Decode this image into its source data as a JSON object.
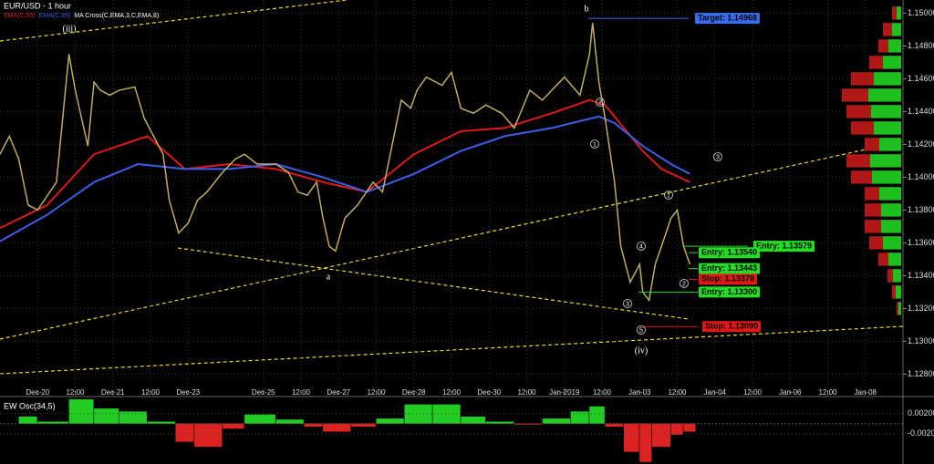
{
  "chart_data": [
    {
      "type": "line",
      "title": "EUR/USD - 1 hour",
      "xlim": [
        -12,
        276
      ],
      "ylim": [
        1.1268,
        1.1508
      ],
      "grid": true,
      "xticks": [
        {
          "value": 0,
          "label": "Dec-20"
        },
        {
          "value": 12,
          "label": "12:00"
        },
        {
          "value": 24,
          "label": "Dec-21"
        },
        {
          "value": 36,
          "label": "12:00"
        },
        {
          "value": 48,
          "label": "Dec-23"
        },
        {
          "value": 72,
          "label": "Dec-25"
        },
        {
          "value": 84,
          "label": "12:00"
        },
        {
          "value": 96,
          "label": "Dec-27"
        },
        {
          "value": 108,
          "label": "12:00"
        },
        {
          "value": 120,
          "label": "Dec-28"
        },
        {
          "value": 132,
          "label": "12:00"
        },
        {
          "value": 144,
          "label": "Dec-30"
        },
        {
          "value": 156,
          "label": "12:00"
        },
        {
          "value": 168,
          "label": "Jan-2019"
        },
        {
          "value": 180,
          "label": "12:00"
        },
        {
          "value": 192,
          "label": "Jan-03"
        },
        {
          "value": 204,
          "label": "12:00"
        },
        {
          "value": 216,
          "label": "Jan-04"
        },
        {
          "value": 228,
          "label": "12:00"
        },
        {
          "value": 240,
          "label": "Jan-06"
        },
        {
          "value": 252,
          "label": "12:00"
        },
        {
          "value": 264,
          "label": "Jan-08"
        }
      ],
      "yticks": [
        {
          "value": 1.128,
          "label": "1.12800"
        },
        {
          "value": 1.13,
          "label": "1.13000"
        },
        {
          "value": 1.132,
          "label": "1.13200"
        },
        {
          "value": 1.134,
          "label": "1.13400"
        },
        {
          "value": 1.136,
          "label": "1.13600"
        },
        {
          "value": 1.138,
          "label": "1.13800"
        },
        {
          "value": 1.14,
          "label": "1.14000"
        },
        {
          "value": 1.142,
          "label": "1.14200"
        },
        {
          "value": 1.144,
          "label": "1.14400"
        },
        {
          "value": 1.146,
          "label": "1.14600"
        },
        {
          "value": 1.148,
          "label": "1.14800"
        },
        {
          "value": 1.15,
          "label": "1.15000"
        }
      ],
      "series": [
        {
          "name": "EMA(C,55)",
          "color": "#e01818",
          "x": [
            -12,
            3,
            18,
            35,
            47,
            61,
            76,
            91,
            105,
            120,
            135,
            149,
            164,
            176,
            181,
            193,
            199,
            208
          ],
          "values": [
            1.1369,
            1.1383,
            1.1414,
            1.1425,
            1.1405,
            1.1408,
            1.1405,
            1.1397,
            1.1391,
            1.1414,
            1.1428,
            1.143,
            1.1439,
            1.1447,
            1.1444,
            1.1416,
            1.1405,
            1.1397
          ]
        },
        {
          "name": "EMA(C,89)",
          "color": "#3a5ee8",
          "x": [
            -12,
            3,
            18,
            32,
            47,
            61,
            76,
            91,
            105,
            120,
            135,
            149,
            164,
            179,
            184,
            193,
            202,
            208
          ],
          "values": [
            1.1361,
            1.1377,
            1.1397,
            1.1408,
            1.1405,
            1.1405,
            1.1408,
            1.14,
            1.1391,
            1.1402,
            1.1416,
            1.1425,
            1.143,
            1.1437,
            1.1433,
            1.1419,
            1.1408,
            1.1402
          ]
        },
        {
          "name": "MA Cross(C,EMA,3,C,EMA,8)",
          "color": "#d9a520",
          "x": [
            -12,
            -9,
            -6,
            -3,
            0,
            6,
            10,
            12,
            16,
            18,
            20,
            23,
            26,
            31,
            34,
            37,
            40,
            42,
            45,
            48,
            51,
            54,
            59,
            63,
            66,
            70,
            76,
            80,
            83,
            86,
            89,
            91,
            93,
            95,
            98,
            102,
            107,
            110,
            113,
            116,
            119,
            121,
            124,
            129,
            132,
            135,
            139,
            143,
            148,
            152,
            157,
            161,
            164,
            168,
            173,
            176,
            177,
            179,
            181,
            184,
            186,
            189,
            192,
            193,
            195,
            197,
            199,
            202,
            204,
            206,
            208
          ],
          "values": [
            1.1414,
            1.1425,
            1.1411,
            1.1383,
            1.138,
            1.1397,
            1.1475,
            1.1453,
            1.1419,
            1.1458,
            1.1453,
            1.145,
            1.1453,
            1.1455,
            1.1436,
            1.1425,
            1.1414,
            1.1386,
            1.1366,
            1.1372,
            1.1386,
            1.1391,
            1.1403,
            1.1411,
            1.1414,
            1.1408,
            1.1408,
            1.1403,
            1.1391,
            1.1389,
            1.1397,
            1.1375,
            1.1358,
            1.1355,
            1.1375,
            1.1383,
            1.1397,
            1.1391,
            1.1419,
            1.1447,
            1.1442,
            1.1453,
            1.1461,
            1.1456,
            1.1464,
            1.1442,
            1.1439,
            1.1444,
            1.1439,
            1.143,
            1.1453,
            1.1447,
            1.1453,
            1.1461,
            1.145,
            1.1475,
            1.1494,
            1.1458,
            1.1436,
            1.1397,
            1.1358,
            1.1336,
            1.1347,
            1.133,
            1.1325,
            1.1347,
            1.1358,
            1.1375,
            1.138,
            1.1358,
            1.1347
          ]
        }
      ],
      "levels": [
        {
          "label": "Target: 1.14968",
          "value": 1.14968,
          "color": "#3a6cf0"
        },
        {
          "label": "Entry: 1.13579",
          "value": 1.13579,
          "color": "#22dd22"
        },
        {
          "label": "Entry: 1.13540",
          "value": 1.1354,
          "color": "#22dd22"
        },
        {
          "label": "Entry: 1.13443",
          "value": 1.13443,
          "color": "#22dd22"
        },
        {
          "label": "Stop: 1.13378",
          "value": 1.13378,
          "color": "#e01818"
        },
        {
          "label": "Entry: 1.13300",
          "value": 1.133,
          "color": "#22dd22"
        },
        {
          "label": "Stop: 1.13090",
          "value": 1.1309,
          "color": "#e01818"
        }
      ],
      "wave_labels": [
        "(iii)",
        "b",
        "a",
        "(iv)"
      ],
      "wave_counts": [
        "1",
        "2",
        "3",
        "4",
        "5",
        "1",
        "2",
        "3"
      ],
      "profile": {
        "prices": [
          1.132,
          1.133,
          1.134,
          1.135,
          1.136,
          1.137,
          1.138,
          1.139,
          1.14,
          1.141,
          1.142,
          1.143,
          1.144,
          1.145,
          1.146,
          1.147,
          1.148,
          1.149,
          1.15
        ],
        "green": [
          3,
          6,
          9,
          14,
          20,
          22,
          22,
          24,
          32,
          34,
          24,
          30,
          33,
          36,
          30,
          20,
          14,
          10,
          5
        ],
        "red": [
          2,
          4,
          6,
          11,
          15,
          18,
          18,
          16,
          23,
          26,
          16,
          25,
          27,
          29,
          25,
          15,
          11,
          10,
          5
        ],
        "green_color": "#1fbf1f",
        "red_color": "#b01818"
      }
    },
    {
      "type": "bar",
      "title": "EW Osc(34,5)",
      "ylim": [
        -0.008,
        0.005
      ],
      "yticks": [
        {
          "value": 0.002,
          "label": "0.00200"
        },
        {
          "value": -0.002,
          "label": "-0.00200"
        }
      ],
      "x": [
        -6,
        0,
        10,
        18,
        26,
        35,
        44,
        50,
        59,
        66,
        76,
        85,
        91,
        100,
        108,
        117,
        126,
        135,
        143,
        152,
        161,
        170,
        176,
        181,
        187,
        192,
        196,
        202,
        206
      ],
      "values": [
        0.0014,
        0.0004,
        0.0048,
        0.003,
        0.0024,
        0.0004,
        -0.0036,
        -0.0046,
        -0.001,
        0.0018,
        0.0008,
        -0.0006,
        -0.0016,
        -0.0006,
        0.001,
        0.0038,
        0.0038,
        0.0014,
        0.0004,
        -0.0002,
        0.001,
        0.0024,
        0.0034,
        -0.0006,
        -0.0056,
        -0.0076,
        -0.0046,
        -0.0022,
        -0.0016
      ],
      "positive_color": "#22cc22",
      "negative_color": "#dd2222"
    }
  ]
}
